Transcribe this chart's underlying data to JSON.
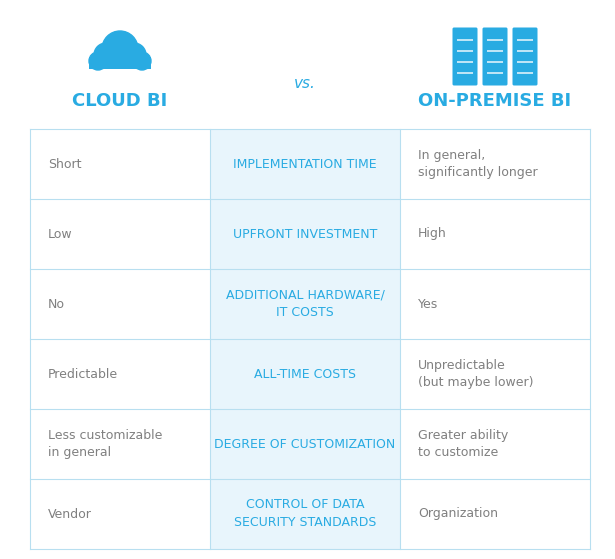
{
  "title_left": "CLOUD BI",
  "title_center": "vs.",
  "title_right": "ON-PREMISE BI",
  "title_color": "#29ABE2",
  "center_color": "#29ABE2",
  "row_bg_left": "#ffffff",
  "row_bg_center": "#E8F5FC",
  "row_bg_right": "#ffffff",
  "border_color": "#B8DFF0",
  "rows": [
    {
      "left": "Short",
      "center": "IMPLEMENTATION TIME",
      "right": "In general,\nsignificantly longer"
    },
    {
      "left": "Low",
      "center": "UPFRONT INVESTMENT",
      "right": "High"
    },
    {
      "left": "No",
      "center": "ADDITIONAL HARDWARE/\nIT COSTS",
      "right": "Yes"
    },
    {
      "left": "Predictable",
      "center": "ALL-TIME COSTS",
      "right": "Unpredictable\n(but maybe lower)"
    },
    {
      "left": "Less customizable\nin general",
      "center": "DEGREE OF CUSTOMIZATION",
      "right": "Greater ability\nto customize"
    },
    {
      "left": "Vendor",
      "center": "CONTROL OF DATA\nSECURITY STANDARDS",
      "right": "Organization"
    }
  ],
  "left_text_color": "#808080",
  "center_text_color": "#29ABE2",
  "right_text_color": "#808080",
  "cloud_color": "#29ABE2",
  "server_color": "#29ABE2",
  "figwidth": 6.15,
  "figheight": 5.59,
  "dpi": 100
}
